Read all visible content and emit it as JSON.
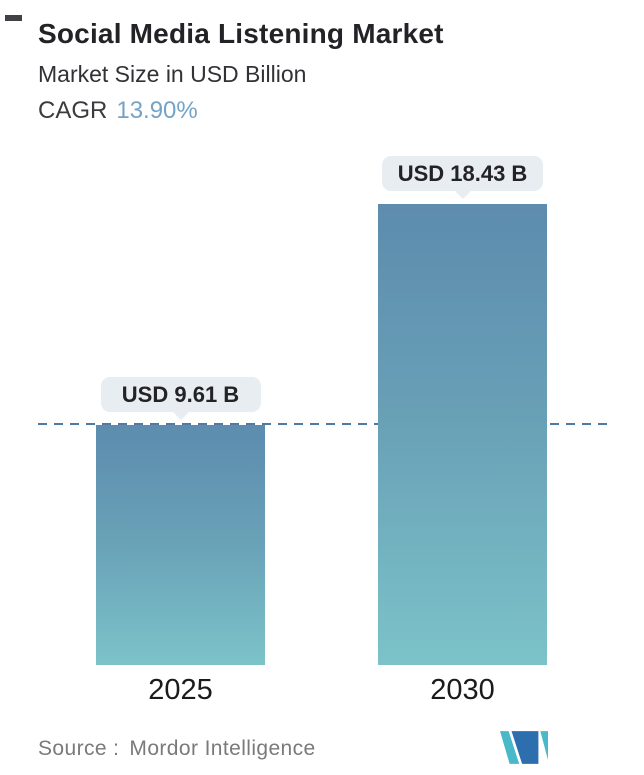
{
  "header": {
    "title": "Social Media Listening Market",
    "subtitle": "Market Size in USD Billion",
    "cagr_label": "CAGR",
    "cagr_value": "13.90%"
  },
  "chart_data": {
    "type": "bar",
    "title": "Social Media Listening Market",
    "subtitle": "Market Size in USD Billion",
    "cagr": "13.90%",
    "unit": "USD Billion",
    "categories": [
      "2025",
      "2030"
    ],
    "values": [
      9.61,
      18.43
    ],
    "value_labels": [
      "USD 9.61 B",
      "USD 18.43 B"
    ],
    "ylim": [
      0,
      18.43
    ],
    "grid": false,
    "legend": false,
    "reference_line": {
      "value": 9.61,
      "style": "dashed",
      "note": "horizontal dashed line at the 2025 bar level spanning the chart width"
    }
  },
  "footer": {
    "source_label": "Source :",
    "source_value": "Mordor Intelligence",
    "logo": "mordor-intelligence-logo"
  },
  "colors": {
    "bar_top": "#5d8cae",
    "bar_bottom": "#7cc3c9",
    "dashed_line": "#4f7aa3",
    "badge_bg": "#e7edf0",
    "cagr_value": "#74a3c8",
    "text_dark": "#232327",
    "text_gray": "#7a7a7a",
    "logo_blue": "#2d6fae",
    "logo_teal": "#49b8c8"
  }
}
